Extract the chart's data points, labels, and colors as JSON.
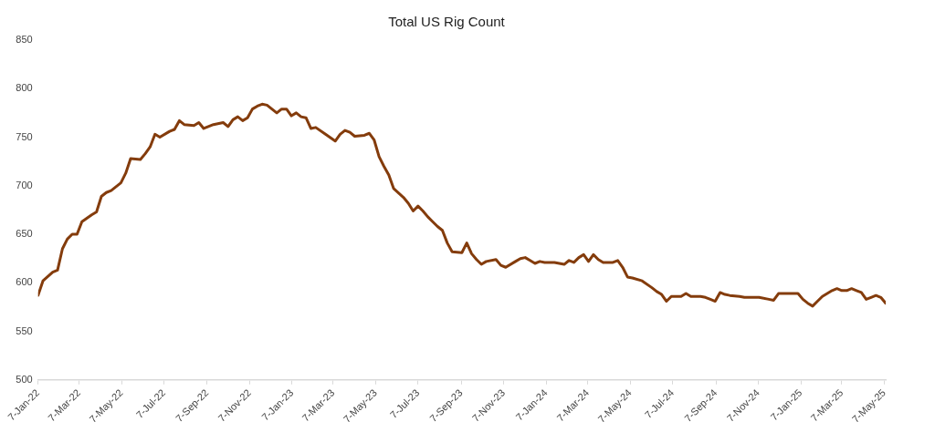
{
  "chart_data": {
    "type": "line",
    "title": "Total US Rig Count",
    "x": [
      "2022-01-07",
      "2022-01-14",
      "2022-01-28",
      "2022-02-04",
      "2022-02-11",
      "2022-02-18",
      "2022-02-25",
      "2022-03-04",
      "2022-03-11",
      "2022-03-25",
      "2022-04-01",
      "2022-04-08",
      "2022-04-15",
      "2022-04-22",
      "2022-05-06",
      "2022-05-13",
      "2022-05-20",
      "2022-06-03",
      "2022-06-10",
      "2022-06-17",
      "2022-06-24",
      "2022-07-01",
      "2022-07-15",
      "2022-07-22",
      "2022-07-29",
      "2022-08-05",
      "2022-08-19",
      "2022-08-26",
      "2022-09-02",
      "2022-09-16",
      "2022-09-30",
      "2022-10-07",
      "2022-10-14",
      "2022-10-21",
      "2022-10-28",
      "2022-11-04",
      "2022-11-11",
      "2022-11-18",
      "2022-11-25",
      "2022-12-02",
      "2022-12-09",
      "2022-12-16",
      "2022-12-23",
      "2022-12-30",
      "2023-01-06",
      "2023-01-13",
      "2023-01-20",
      "2023-01-27",
      "2023-02-03",
      "2023-02-10",
      "2023-02-24",
      "2023-03-10",
      "2023-03-17",
      "2023-03-24",
      "2023-03-31",
      "2023-04-07",
      "2023-04-21",
      "2023-04-28",
      "2023-05-05",
      "2023-05-12",
      "2023-05-19",
      "2023-05-26",
      "2023-06-02",
      "2023-06-16",
      "2023-06-23",
      "2023-06-30",
      "2023-07-07",
      "2023-07-14",
      "2023-07-21",
      "2023-07-28",
      "2023-08-04",
      "2023-08-11",
      "2023-08-18",
      "2023-08-25",
      "2023-09-08",
      "2023-09-15",
      "2023-09-22",
      "2023-09-29",
      "2023-10-06",
      "2023-10-13",
      "2023-10-27",
      "2023-11-03",
      "2023-11-10",
      "2023-11-24",
      "2023-12-01",
      "2023-12-08",
      "2023-12-15",
      "2023-12-22",
      "2023-12-29",
      "2024-01-05",
      "2024-01-19",
      "2024-02-02",
      "2024-02-09",
      "2024-02-16",
      "2024-02-23",
      "2024-03-01",
      "2024-03-08",
      "2024-03-15",
      "2024-03-22",
      "2024-03-29",
      "2024-04-12",
      "2024-04-19",
      "2024-04-26",
      "2024-05-03",
      "2024-05-10",
      "2024-05-24",
      "2024-06-07",
      "2024-06-14",
      "2024-06-21",
      "2024-06-28",
      "2024-07-05",
      "2024-07-19",
      "2024-07-26",
      "2024-08-02",
      "2024-08-16",
      "2024-08-23",
      "2024-08-30",
      "2024-09-06",
      "2024-09-13",
      "2024-09-20",
      "2024-09-27",
      "2024-10-11",
      "2024-10-18",
      "2024-11-08",
      "2024-11-22",
      "2024-11-29",
      "2024-12-06",
      "2025-01-03",
      "2025-01-10",
      "2025-01-17",
      "2025-01-24",
      "2025-01-31",
      "2025-02-07",
      "2025-02-21",
      "2025-02-28",
      "2025-03-07",
      "2025-03-14",
      "2025-03-21",
      "2025-03-28",
      "2025-04-04",
      "2025-04-11",
      "2025-04-18",
      "2025-04-25",
      "2025-05-02",
      "2025-05-09"
    ],
    "series": [
      {
        "color": "#843c0c",
        "values": [
          587,
          602,
          611,
          613,
          635,
          645,
          650,
          650,
          663,
          670,
          673,
          689,
          693,
          695,
          703,
          713,
          728,
          727,
          733,
          740,
          753,
          750,
          756,
          758,
          767,
          763,
          762,
          765,
          759,
          763,
          765,
          761,
          768,
          771,
          767,
          770,
          779,
          782,
          784,
          783,
          779,
          775,
          779,
          779,
          772,
          775,
          771,
          770,
          759,
          760,
          753,
          746,
          753,
          757,
          755,
          751,
          752,
          754,
          747,
          730,
          720,
          711,
          697,
          688,
          682,
          674,
          679,
          674,
          668,
          663,
          658,
          654,
          641,
          632,
          631,
          641,
          630,
          624,
          619,
          622,
          624,
          618,
          616,
          622,
          625,
          626,
          623,
          620,
          622,
          621,
          621,
          619,
          623,
          621,
          626,
          629,
          622,
          629,
          624,
          621,
          621,
          623,
          616,
          606,
          605,
          602,
          595,
          591,
          588,
          581,
          586,
          586,
          589,
          586,
          586,
          585,
          583,
          581,
          590,
          588,
          587,
          586,
          585,
          585,
          583,
          582,
          589,
          589,
          583,
          579,
          576,
          581,
          586,
          592,
          594,
          592,
          592,
          594,
          592,
          590,
          583,
          585,
          587,
          585,
          579
        ]
      }
    ],
    "xlim": [
      "2022-01-07",
      "2025-05-09"
    ],
    "xticks": [
      {
        "value": "2022-01-07",
        "label": "7-Jan-22"
      },
      {
        "value": "2022-03-07",
        "label": "7-Mar-22"
      },
      {
        "value": "2022-05-07",
        "label": "7-May-22"
      },
      {
        "value": "2022-07-07",
        "label": "7-Jul-22"
      },
      {
        "value": "2022-09-07",
        "label": "7-Sep-22"
      },
      {
        "value": "2022-11-07",
        "label": "7-Nov-22"
      },
      {
        "value": "2023-01-07",
        "label": "7-Jan-23"
      },
      {
        "value": "2023-03-07",
        "label": "7-Mar-23"
      },
      {
        "value": "2023-05-07",
        "label": "7-May-23"
      },
      {
        "value": "2023-07-07",
        "label": "7-Jul-23"
      },
      {
        "value": "2023-09-07",
        "label": "7-Sep-23"
      },
      {
        "value": "2023-11-07",
        "label": "7-Nov-23"
      },
      {
        "value": "2024-01-07",
        "label": "7-Jan-24"
      },
      {
        "value": "2024-03-07",
        "label": "7-Mar-24"
      },
      {
        "value": "2024-05-07",
        "label": "7-May-24"
      },
      {
        "value": "2024-07-07",
        "label": "7-Jul-24"
      },
      {
        "value": "2024-09-07",
        "label": "7-Sep-24"
      },
      {
        "value": "2024-11-07",
        "label": "7-Nov-24"
      },
      {
        "value": "2025-01-07",
        "label": "7-Jan-25"
      },
      {
        "value": "2025-03-07",
        "label": "7-Mar-25"
      },
      {
        "value": "2025-05-07",
        "label": "7-May-25"
      }
    ],
    "ylim": [
      500,
      850
    ],
    "yticks": [
      500,
      550,
      600,
      650,
      700,
      750,
      800,
      850
    ],
    "grid": false,
    "legend": false,
    "marker": "none",
    "line_style": "solid"
  }
}
